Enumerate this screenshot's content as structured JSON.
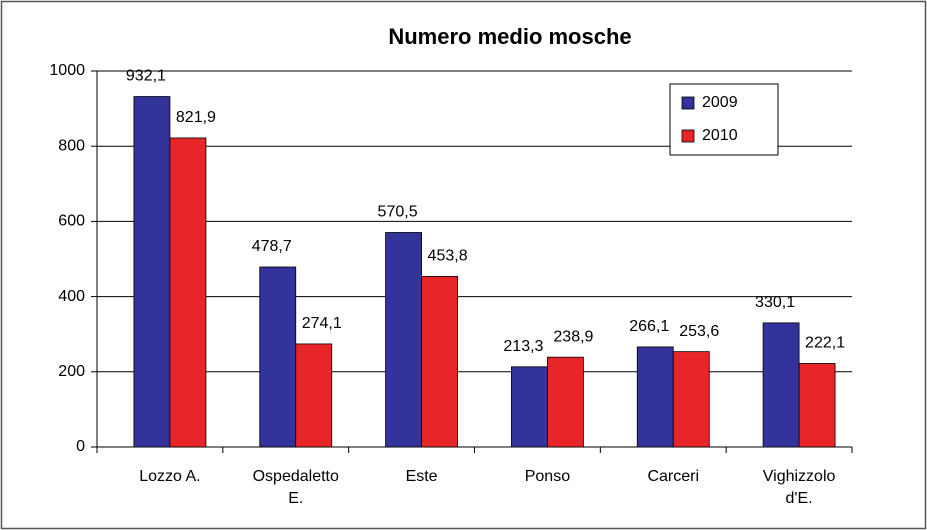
{
  "chart_data": {
    "type": "bar",
    "title": "Numero medio mosche",
    "categories": [
      [
        "Lozzo A."
      ],
      [
        "Ospedaletto",
        "E."
      ],
      [
        "Este"
      ],
      [
        "Ponso"
      ],
      [
        "Carceri"
      ],
      [
        "Vighizzolo",
        "d'E."
      ]
    ],
    "series": [
      {
        "name": "2009",
        "color": "#33339c",
        "values": [
          932.1,
          478.7,
          570.5,
          213.3,
          266.1,
          330.1
        ],
        "value_labels": [
          "932,1",
          "478,7",
          "570,5",
          "213,3",
          "266,1",
          "330,1"
        ]
      },
      {
        "name": "2010",
        "color": "#e8262a",
        "values": [
          821.9,
          274.1,
          453.8,
          238.9,
          253.6,
          222.1
        ],
        "value_labels": [
          "821,9",
          "274,1",
          "453,8",
          "238,9",
          "253,6",
          "222,1"
        ]
      }
    ],
    "ylim": [
      0,
      1000
    ],
    "yticks": [
      0,
      200,
      400,
      600,
      800,
      1000
    ],
    "grid": true,
    "legend": "top-right"
  }
}
